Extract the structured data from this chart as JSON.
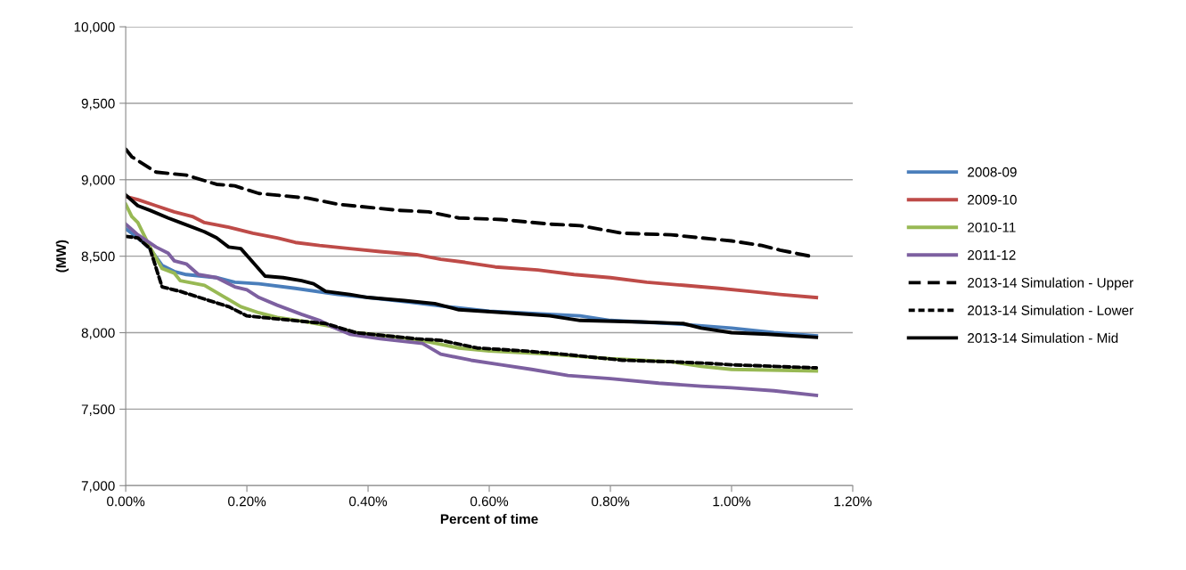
{
  "chart_data": {
    "type": "line",
    "xlabel": "Percent of time",
    "ylabel": "(MW)",
    "xlim": [
      0,
      1.2
    ],
    "ylim": [
      7000,
      10000
    ],
    "xticks": [
      {
        "value": 0,
        "label": "0.00%"
      },
      {
        "value": 0.2,
        "label": "0.20%"
      },
      {
        "value": 0.4,
        "label": "0.40%"
      },
      {
        "value": 0.6,
        "label": "0.60%"
      },
      {
        "value": 0.8,
        "label": "0.80%"
      },
      {
        "value": 1.0,
        "label": "1.00%"
      },
      {
        "value": 1.2,
        "label": "1.20%"
      }
    ],
    "yticks": [
      {
        "value": 7000,
        "label": "7,000"
      },
      {
        "value": 7500,
        "label": "7,500"
      },
      {
        "value": 8000,
        "label": "8,000"
      },
      {
        "value": 8500,
        "label": "8,500"
      },
      {
        "value": 9000,
        "label": "9,000"
      },
      {
        "value": 9500,
        "label": "9,500"
      },
      {
        "value": 10000,
        "label": "10,000"
      }
    ],
    "grid": "y",
    "legend": "right",
    "marker": "none",
    "series": [
      {
        "name": "2008-09",
        "color": "#4a7ebb",
        "line_style": "solid",
        "x": [
          0,
          0.02,
          0.04,
          0.06,
          0.08,
          0.1,
          0.15,
          0.18,
          0.22,
          0.28,
          0.35,
          0.4,
          0.47,
          0.53,
          0.6,
          0.7,
          0.75,
          0.8,
          0.9,
          1.0,
          1.07,
          1.14
        ],
        "values": [
          8680,
          8620,
          8550,
          8440,
          8400,
          8380,
          8360,
          8330,
          8320,
          8290,
          8250,
          8230,
          8200,
          8170,
          8140,
          8120,
          8110,
          8080,
          8060,
          8030,
          8000,
          7980
        ]
      },
      {
        "name": "2009-10",
        "color": "#be4b48",
        "line_style": "solid",
        "x": [
          0,
          0.02,
          0.05,
          0.08,
          0.11,
          0.13,
          0.17,
          0.21,
          0.25,
          0.28,
          0.32,
          0.37,
          0.42,
          0.48,
          0.52,
          0.56,
          0.61,
          0.68,
          0.74,
          0.8,
          0.86,
          0.92,
          0.98,
          1.03,
          1.08,
          1.14
        ],
        "values": [
          8890,
          8870,
          8830,
          8790,
          8760,
          8720,
          8690,
          8650,
          8620,
          8590,
          8570,
          8550,
          8530,
          8510,
          8480,
          8460,
          8430,
          8410,
          8380,
          8360,
          8330,
          8310,
          8290,
          8270,
          8250,
          8230
        ]
      },
      {
        "name": "2010-11",
        "color": "#98b954",
        "line_style": "solid",
        "x": [
          0,
          0.01,
          0.02,
          0.04,
          0.06,
          0.08,
          0.09,
          0.13,
          0.16,
          0.19,
          0.22,
          0.25,
          0.3,
          0.34,
          0.38,
          0.45,
          0.5,
          0.55,
          0.6,
          0.7,
          0.8,
          0.9,
          0.95,
          1.0,
          1.14
        ],
        "values": [
          8840,
          8760,
          8720,
          8560,
          8420,
          8390,
          8340,
          8310,
          8240,
          8170,
          8130,
          8100,
          8070,
          8040,
          8000,
          7970,
          7940,
          7900,
          7880,
          7860,
          7830,
          7810,
          7780,
          7760,
          7750
        ]
      },
      {
        "name": "2011-12",
        "color": "#7d60a0",
        "line_style": "solid",
        "x": [
          0,
          0.02,
          0.05,
          0.07,
          0.08,
          0.1,
          0.12,
          0.15,
          0.18,
          0.2,
          0.22,
          0.25,
          0.29,
          0.32,
          0.34,
          0.37,
          0.42,
          0.49,
          0.52,
          0.57,
          0.62,
          0.67,
          0.73,
          0.8,
          0.88,
          0.95,
          1.0,
          1.07,
          1.14
        ],
        "values": [
          8710,
          8640,
          8560,
          8520,
          8470,
          8450,
          8380,
          8360,
          8300,
          8280,
          8230,
          8180,
          8120,
          8080,
          8040,
          7990,
          7960,
          7930,
          7860,
          7820,
          7790,
          7760,
          7720,
          7700,
          7670,
          7650,
          7640,
          7620,
          7590
        ]
      },
      {
        "name": "2013-14 Simulation - Upper",
        "color": "#000000",
        "line_style": "dashed",
        "x": [
          0,
          0.01,
          0.05,
          0.1,
          0.15,
          0.18,
          0.22,
          0.3,
          0.35,
          0.45,
          0.5,
          0.55,
          0.62,
          0.7,
          0.75,
          0.82,
          0.9,
          0.95,
          1.0,
          1.05,
          1.08,
          1.13
        ],
        "values": [
          9200,
          9150,
          9050,
          9030,
          8970,
          8960,
          8910,
          8880,
          8840,
          8800,
          8790,
          8750,
          8740,
          8710,
          8700,
          8650,
          8640,
          8620,
          8600,
          8570,
          8540,
          8500
        ]
      },
      {
        "name": "2013-14 Simulation - Lower",
        "color": "#000000",
        "line_style": "dotted",
        "x": [
          0,
          0.02,
          0.04,
          0.06,
          0.09,
          0.13,
          0.17,
          0.2,
          0.25,
          0.33,
          0.38,
          0.48,
          0.52,
          0.58,
          0.66,
          0.72,
          0.77,
          0.82,
          0.9,
          0.96,
          1.0,
          1.14
        ],
        "values": [
          8630,
          8620,
          8550,
          8300,
          8270,
          8220,
          8170,
          8110,
          8090,
          8060,
          8000,
          7960,
          7950,
          7900,
          7880,
          7860,
          7840,
          7820,
          7810,
          7800,
          7790,
          7770
        ]
      },
      {
        "name": "2013-14 Simulation - Mid",
        "color": "#000000",
        "line_style": "solid",
        "x": [
          0,
          0.02,
          0.04,
          0.07,
          0.09,
          0.13,
          0.15,
          0.17,
          0.19,
          0.21,
          0.23,
          0.26,
          0.29,
          0.31,
          0.33,
          0.37,
          0.4,
          0.46,
          0.51,
          0.55,
          0.63,
          0.7,
          0.75,
          0.85,
          0.92,
          0.95,
          1.0,
          1.06,
          1.1,
          1.14
        ],
        "values": [
          8900,
          8830,
          8800,
          8750,
          8720,
          8660,
          8620,
          8560,
          8550,
          8460,
          8370,
          8360,
          8340,
          8320,
          8270,
          8250,
          8230,
          8210,
          8190,
          8150,
          8130,
          8110,
          8080,
          8070,
          8060,
          8030,
          8000,
          7990,
          7980,
          7970
        ]
      }
    ]
  }
}
